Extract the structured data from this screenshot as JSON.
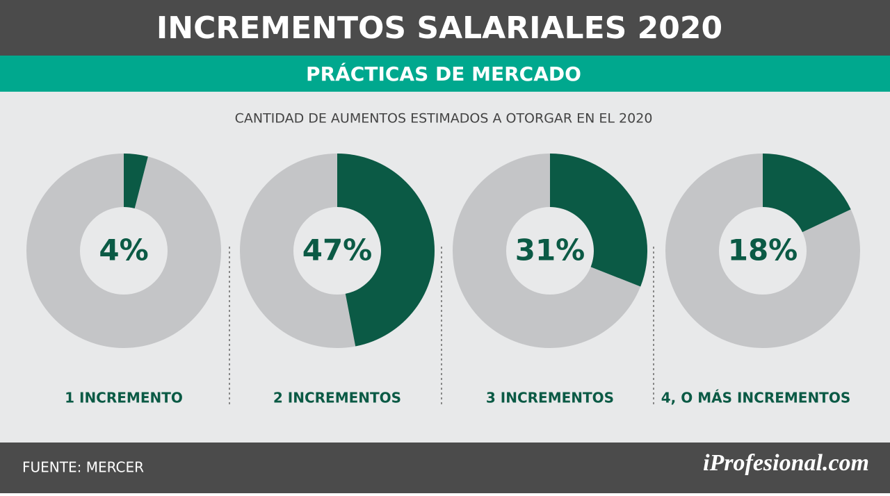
{
  "chart_data": {
    "type": "donut",
    "title": "INCREMENTOS SALARIALES 2020",
    "subtitle": "PRÁCTICAS DE MERCADO",
    "caption": "CANTIDAD DE AUMENTOS ESTIMADOS A OTORGAR EN EL 2020",
    "categories": [
      "1 INCREMENTO",
      "2 INCREMENTOS",
      "3 INCREMENTOS",
      "4, O MÁS INCREMENTOS"
    ],
    "values": [
      4,
      47,
      31,
      18
    ],
    "value_labels": [
      "4%",
      "47%",
      "31%",
      "18%"
    ],
    "color": "#0b5a45"
  },
  "source": "FUENTE:  MERCER",
  "brand": "iProfesional.com"
}
